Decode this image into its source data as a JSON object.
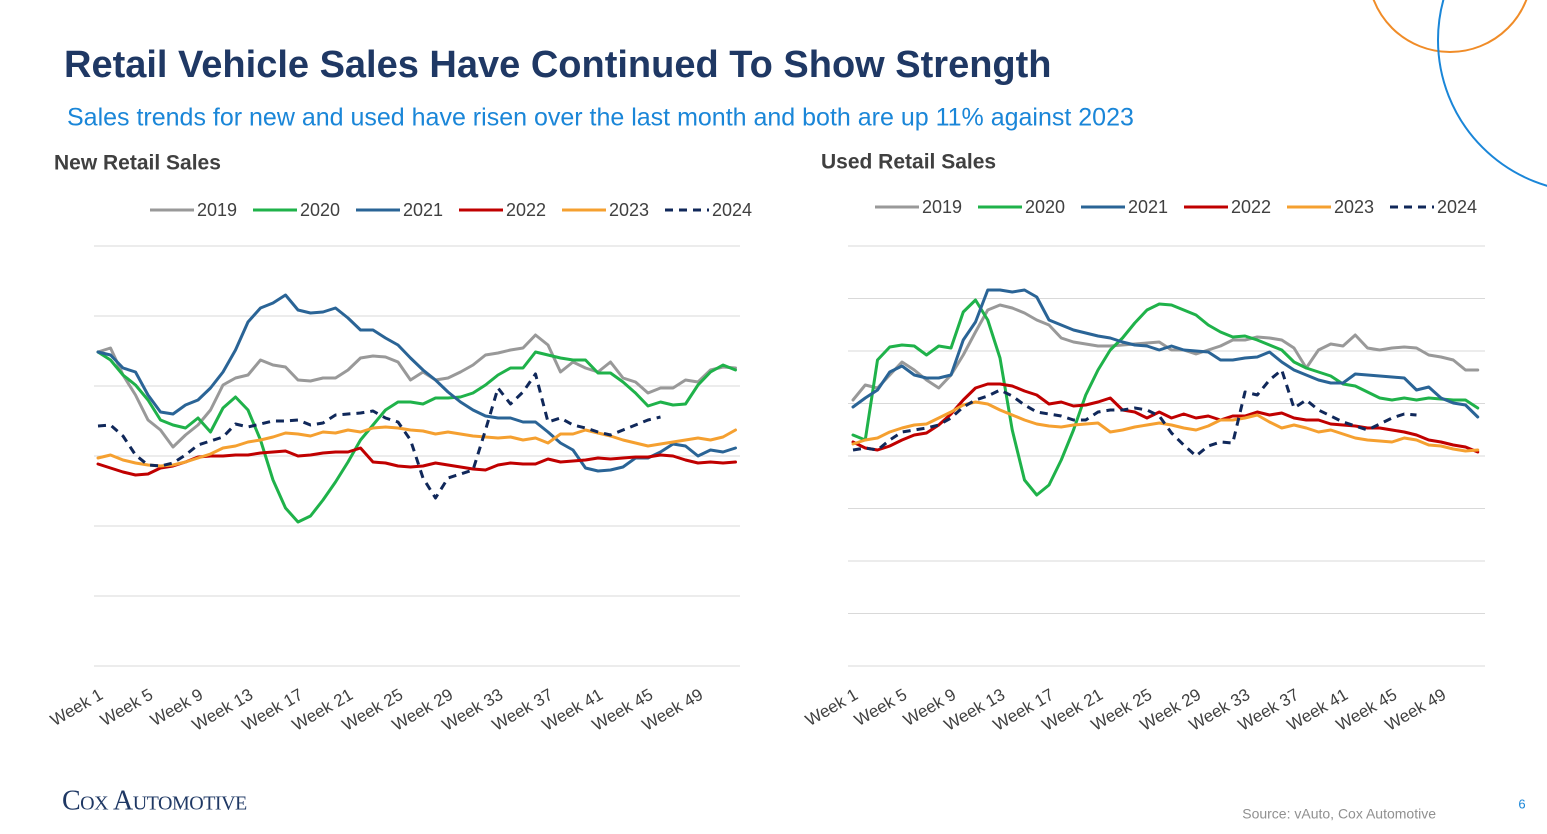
{
  "title": "Retail Vehicle Sales Have Continued To Show Strength",
  "subtitle": "Sales trends for new and used have risen over the last month and both are up 11% against 2023",
  "logo": "Cox Automotive",
  "source": "Source: vAuto, Cox Automotive",
  "page_number": "6",
  "chart_data": [
    {
      "type": "line",
      "title": "New Retail Sales",
      "categories": [
        "Week 1",
        null,
        null,
        null,
        "Week 5",
        null,
        null,
        null,
        "Week 9",
        null,
        null,
        null,
        "Week 13",
        null,
        null,
        null,
        "Week 17",
        null,
        null,
        null,
        "Week 21",
        null,
        null,
        null,
        "Week 25",
        null,
        null,
        null,
        "Week 29",
        null,
        null,
        null,
        "Week 33",
        null,
        null,
        null,
        "Week 37",
        null,
        null,
        null,
        "Week 41",
        null,
        null,
        null,
        "Week 45",
        null,
        null,
        null,
        "Week 49",
        null,
        null,
        null
      ],
      "ylim": [
        0,
        420
      ],
      "yticks": [
        0,
        70,
        140,
        210,
        280,
        350,
        420
      ],
      "grid": true,
      "series": [
        {
          "name": "2019",
          "color": "#999999",
          "values": [
            314,
            318,
            291,
            271,
            246,
            236,
            219,
            231,
            241,
            256,
            281,
            288,
            291,
            306,
            301,
            299,
            286,
            285,
            288,
            288,
            296,
            308,
            310,
            309,
            304,
            286,
            294,
            286,
            288,
            294,
            301,
            311,
            313,
            316,
            318,
            331,
            321,
            294,
            304,
            298,
            294,
            304,
            288,
            284,
            273,
            278,
            278,
            286,
            284,
            296,
            299,
            298
          ]
        },
        {
          "name": "2020",
          "color": "#1fb24a",
          "values": [
            314,
            306,
            291,
            281,
            266,
            246,
            241,
            238,
            248,
            234,
            258,
            269,
            256,
            226,
            186,
            158,
            144,
            150,
            166,
            184,
            204,
            226,
            241,
            256,
            264,
            264,
            262,
            268,
            268,
            269,
            273,
            281,
            291,
            298,
            298,
            314,
            311,
            308,
            306,
            306,
            293,
            293,
            284,
            273,
            260,
            264,
            261,
            262,
            281,
            294,
            301,
            296
          ]
        },
        {
          "name": "2021",
          "color": "#2a6496",
          "values": [
            314,
            311,
            298,
            294,
            271,
            254,
            252,
            261,
            266,
            278,
            294,
            316,
            344,
            358,
            363,
            371,
            356,
            353,
            354,
            358,
            348,
            336,
            336,
            328,
            321,
            308,
            296,
            286,
            274,
            264,
            256,
            250,
            248,
            248,
            244,
            244,
            234,
            223,
            216,
            198,
            195,
            196,
            199,
            208,
            208,
            214,
            222,
            220,
            210,
            216,
            214,
            218
          ]
        },
        {
          "name": "2022",
          "color": "#c00000",
          "values": [
            202,
            198,
            194,
            191,
            192,
            198,
            200,
            204,
            209,
            210,
            210,
            211,
            211,
            213,
            214,
            215,
            210,
            211,
            213,
            214,
            214,
            218,
            204,
            203,
            200,
            199,
            200,
            203,
            201,
            199,
            197,
            196,
            201,
            203,
            202,
            202,
            207,
            204,
            205,
            206,
            208,
            207,
            208,
            209,
            209,
            211,
            210,
            206,
            203,
            204,
            203,
            204
          ]
        },
        {
          "name": "2023",
          "color": "#f5a030",
          "values": [
            208,
            211,
            206,
            203,
            201,
            200,
            201,
            204,
            208,
            212,
            218,
            220,
            224,
            226,
            229,
            233,
            232,
            230,
            234,
            233,
            236,
            234,
            238,
            239,
            238,
            236,
            235,
            232,
            234,
            232,
            230,
            229,
            228,
            229,
            226,
            228,
            223,
            232,
            232,
            236,
            233,
            230,
            226,
            223,
            220,
            222,
            224,
            226,
            228,
            226,
            229,
            236
          ]
        },
        {
          "name": "2024",
          "color": "#10285a",
          "dashed": true,
          "values": [
            240,
            241,
            230,
            211,
            201,
            200,
            203,
            211,
            221,
            225,
            229,
            242,
            239,
            242,
            245,
            245,
            246,
            241,
            243,
            251,
            252,
            253,
            255,
            248,
            244,
            226,
            188,
            168,
            188,
            192,
            196,
            236,
            278,
            262,
            274,
            292,
            244,
            248,
            241,
            238,
            234,
            231,
            236,
            241,
            246,
            249,
            null,
            null,
            null,
            null,
            null,
            null
          ]
        }
      ]
    },
    {
      "type": "line",
      "title": "Used Retail Sales",
      "categories": [
        "Week 1",
        null,
        null,
        null,
        "Week 5",
        null,
        null,
        null,
        "Week 9",
        null,
        null,
        null,
        "Week 13",
        null,
        null,
        null,
        "Week 17",
        null,
        null,
        null,
        "Week 21",
        null,
        null,
        null,
        "Week 25",
        null,
        null,
        null,
        "Week 29",
        null,
        null,
        null,
        "Week 33",
        null,
        null,
        null,
        "Week 37",
        null,
        null,
        null,
        "Week 41",
        null,
        null,
        null,
        "Week 45",
        null,
        null,
        null,
        "Week 49",
        null,
        null,
        null
      ],
      "ylim": [
        0,
        420
      ],
      "yticks": [
        0,
        52.5,
        105,
        157.5,
        210,
        262.5,
        315,
        367.5,
        420
      ],
      "grid": true,
      "series": [
        {
          "name": "2019",
          "color": "#999999",
          "values": [
            266,
            281,
            278,
            291,
            304,
            296,
            286,
            278,
            291,
            311,
            334,
            356,
            361,
            358,
            353,
            346,
            341,
            328,
            324,
            322,
            320,
            320,
            321,
            322,
            323,
            324,
            316,
            316,
            312,
            316,
            320,
            326,
            326,
            329,
            328,
            326,
            318,
            298,
            316,
            322,
            320,
            331,
            318,
            316,
            318,
            319,
            318,
            311,
            309,
            306,
            296,
            296
          ]
        },
        {
          "name": "2020",
          "color": "#1fb24a",
          "values": [
            231,
            226,
            306,
            319,
            321,
            320,
            311,
            320,
            318,
            354,
            366,
            346,
            308,
            236,
            186,
            171,
            181,
            206,
            236,
            271,
            296,
            316,
            328,
            343,
            356,
            362,
            361,
            356,
            351,
            341,
            334,
            329,
            330,
            326,
            321,
            316,
            304,
            298,
            294,
            290,
            282,
            280,
            274,
            268,
            266,
            268,
            266,
            268,
            267,
            266,
            266,
            258
          ]
        },
        {
          "name": "2021",
          "color": "#2a6496",
          "values": [
            259,
            268,
            276,
            294,
            300,
            291,
            288,
            288,
            291,
            326,
            344,
            376,
            376,
            374,
            376,
            369,
            346,
            341,
            336,
            333,
            330,
            328,
            324,
            321,
            320,
            316,
            320,
            316,
            315,
            314,
            306,
            306,
            308,
            309,
            314,
            304,
            296,
            291,
            286,
            283,
            283,
            292,
            291,
            290,
            289,
            288,
            276,
            279,
            268,
            263,
            261,
            249
          ]
        },
        {
          "name": "2022",
          "color": "#c00000",
          "values": [
            224,
            218,
            216,
            220,
            226,
            231,
            233,
            241,
            252,
            266,
            278,
            282,
            282,
            280,
            275,
            271,
            262,
            264,
            260,
            261,
            264,
            268,
            256,
            254,
            248,
            254,
            248,
            252,
            248,
            250,
            246,
            250,
            250,
            254,
            251,
            253,
            248,
            246,
            246,
            242,
            241,
            240,
            238,
            238,
            236,
            234,
            231,
            226,
            224,
            221,
            219,
            214
          ]
        },
        {
          "name": "2023",
          "color": "#f5a030",
          "values": [
            222,
            226,
            228,
            234,
            238,
            241,
            242,
            248,
            254,
            261,
            264,
            262,
            256,
            251,
            246,
            242,
            240,
            239,
            241,
            242,
            243,
            234,
            236,
            239,
            241,
            243,
            241,
            238,
            236,
            240,
            246,
            246,
            248,
            251,
            244,
            238,
            241,
            238,
            234,
            236,
            232,
            228,
            226,
            225,
            224,
            228,
            226,
            221,
            220,
            217,
            215,
            216
          ]
        },
        {
          "name": "2024",
          "color": "#10285a",
          "dashed": true,
          "values": [
            216,
            218,
            216,
            226,
            234,
            236,
            238,
            241,
            248,
            259,
            266,
            270,
            276,
            270,
            261,
            254,
            252,
            250,
            246,
            246,
            254,
            256,
            256,
            258,
            256,
            250,
            233,
            221,
            210,
            220,
            224,
            223,
            274,
            271,
            286,
            296,
            258,
            266,
            256,
            250,
            244,
            240,
            236,
            242,
            248,
            252,
            251,
            null,
            null,
            null,
            null,
            null
          ]
        }
      ]
    }
  ]
}
